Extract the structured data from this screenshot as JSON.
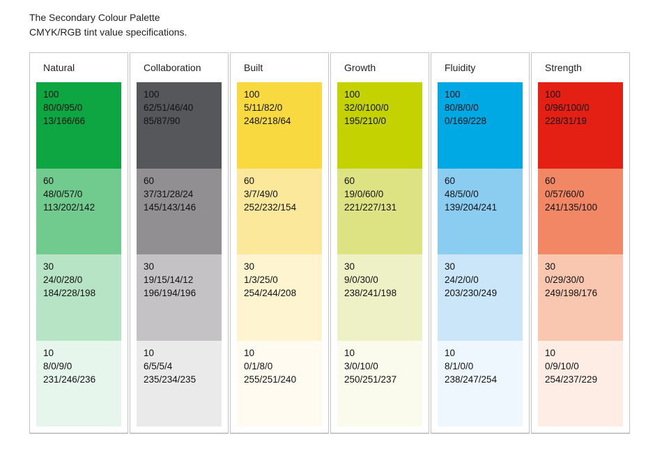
{
  "page": {
    "title": "The Secondary Colour Palette",
    "subtitle": "CMYK/RGB tint value specifications."
  },
  "colors": {
    "background": "#ffffff",
    "text": "#1a1a1a",
    "box_border": "#c6c6c6"
  },
  "palette": {
    "columns": [
      {
        "name": "Natural",
        "tints": [
          {
            "tint": "100",
            "cmyk": "80/0/95/0",
            "rgb": "13/166/66",
            "hex": "#0DA642"
          },
          {
            "tint": "60",
            "cmyk": "48/0/57/0",
            "rgb": "113/202/142",
            "hex": "#71CA8E"
          },
          {
            "tint": "30",
            "cmyk": "24/0/28/0",
            "rgb": "184/228/198",
            "hex": "#B8E4C6"
          },
          {
            "tint": "10",
            "cmyk": "8/0/9/0",
            "rgb": "231/246/236",
            "hex": "#E7F6EC"
          }
        ]
      },
      {
        "name": "Collaboration",
        "tints": [
          {
            "tint": "100",
            "cmyk": "62/51/46/40",
            "rgb": "85/87/90",
            "hex": "#55575A"
          },
          {
            "tint": "60",
            "cmyk": "37/31/28/24",
            "rgb": "145/143/146",
            "hex": "#918F92"
          },
          {
            "tint": "30",
            "cmyk": "19/15/14/12",
            "rgb": "196/194/196",
            "hex": "#C4C2C4"
          },
          {
            "tint": "10",
            "cmyk": "6/5/5/4",
            "rgb": "235/234/235",
            "hex": "#EBEAEB"
          }
        ]
      },
      {
        "name": "Built",
        "tints": [
          {
            "tint": "100",
            "cmyk": "5/11/82/0",
            "rgb": "248/218/64",
            "hex": "#F8DA40"
          },
          {
            "tint": "60",
            "cmyk": "3/7/49/0",
            "rgb": "252/232/154",
            "hex": "#FCE89A"
          },
          {
            "tint": "30",
            "cmyk": "1/3/25/0",
            "rgb": "254/244/208",
            "hex": "#FEF4D0"
          },
          {
            "tint": "10",
            "cmyk": "0/1/8/0",
            "rgb": "255/251/240",
            "hex": "#FFFBF0"
          }
        ]
      },
      {
        "name": "Growth",
        "tints": [
          {
            "tint": "100",
            "cmyk": "32/0/100/0",
            "rgb": "195/210/0",
            "hex": "#C3D200"
          },
          {
            "tint": "60",
            "cmyk": "19/0/60/0",
            "rgb": "221/227/131",
            "hex": "#DDE383"
          },
          {
            "tint": "30",
            "cmyk": "9/0/30/0",
            "rgb": "238/241/198",
            "hex": "#EEF1C6"
          },
          {
            "tint": "10",
            "cmyk": "3/0/10/0",
            "rgb": "250/251/237",
            "hex": "#FAFBED"
          }
        ]
      },
      {
        "name": "Fluidity",
        "tints": [
          {
            "tint": "100",
            "cmyk": "80/8/0/0",
            "rgb": "0/169/228",
            "hex": "#00A9E4"
          },
          {
            "tint": "60",
            "cmyk": "48/5/0/0",
            "rgb": "139/204/241",
            "hex": "#8BCCF1"
          },
          {
            "tint": "30",
            "cmyk": "24/2/0/0",
            "rgb": "203/230/249",
            "hex": "#CBE6F9"
          },
          {
            "tint": "10",
            "cmyk": "8/1/0/0",
            "rgb": "238/247/254",
            "hex": "#EEF7FE"
          }
        ]
      },
      {
        "name": "Strength",
        "tints": [
          {
            "tint": "100",
            "cmyk": "0/96/100/0",
            "rgb": "228/31/19",
            "hex": "#E41F13"
          },
          {
            "tint": "60",
            "cmyk": "0/57/60/0",
            "rgb": "241/135/100",
            "hex": "#F18764"
          },
          {
            "tint": "30",
            "cmyk": "0/29/30/0",
            "rgb": "249/198/176",
            "hex": "#F9C6B0"
          },
          {
            "tint": "10",
            "cmyk": "0/9/10/0",
            "rgb": "254/237/229",
            "hex": "#FEEDE5"
          }
        ]
      }
    ]
  }
}
